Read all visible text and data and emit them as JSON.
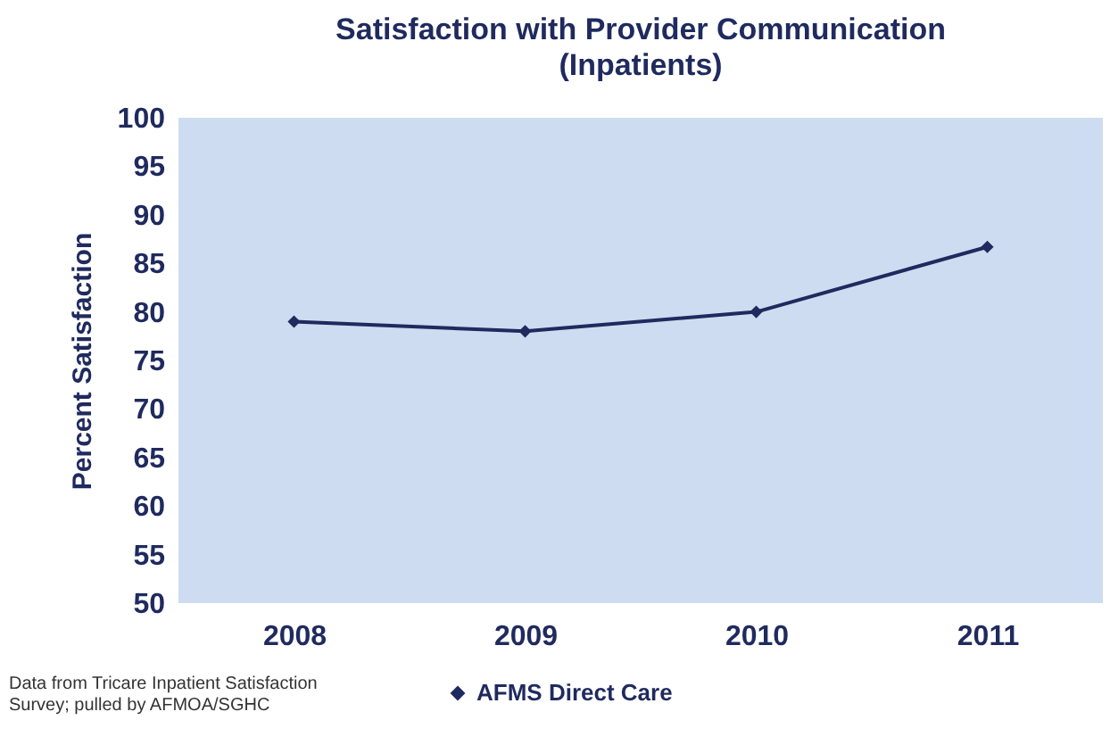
{
  "chart_data": {
    "type": "line",
    "title": "Satisfaction with Provider Communication",
    "subtitle": "(Inpatients)",
    "ylabel": "Percent Satisfaction",
    "categories": [
      "2008",
      "2009",
      "2010",
      "2011"
    ],
    "series": [
      {
        "name": "AFMS Direct Care",
        "color": "#1f2a5e",
        "values": [
          79,
          78,
          80,
          86.7
        ]
      }
    ],
    "ylim": [
      50,
      100
    ],
    "yticks": [
      50,
      55,
      60,
      65,
      70,
      75,
      80,
      85,
      90,
      95,
      100
    ],
    "grid": false,
    "legend": "bottom",
    "marker": "diamond",
    "line_style": "solid",
    "annotations": [
      "Data from Tricare Inpatient Satisfaction Survey; pulled by AFMOA/SGHC"
    ]
  }
}
